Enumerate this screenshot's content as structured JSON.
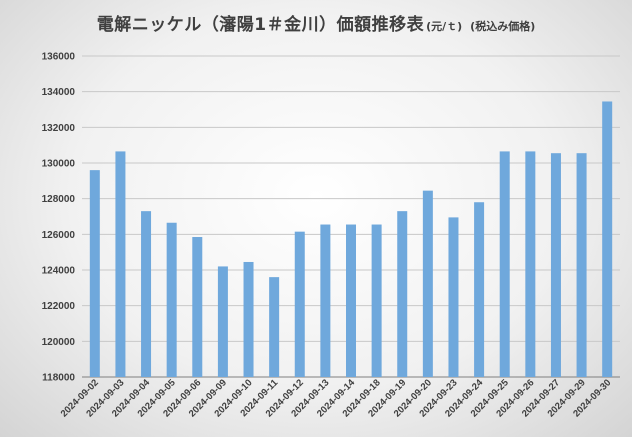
{
  "title": {
    "main": "電解ニッケル（瀋陽1＃金川）価額推移表",
    "unit": "(元/ｔ)",
    "note": "(税込み価格)"
  },
  "colors": {
    "bar": "#6fa8dc",
    "grid": "#c8c8c8",
    "axis": "#7f7f7f",
    "text": "#404040"
  },
  "chart_data": {
    "type": "bar",
    "title": "電解ニッケル（瀋陽1＃金川）価額推移表",
    "xlabel": "",
    "ylabel": "",
    "ylim": [
      118000,
      136000
    ],
    "yticks": [
      118000,
      120000,
      122000,
      124000,
      126000,
      128000,
      130000,
      132000,
      134000,
      136000
    ],
    "grid": true,
    "legend": "none",
    "categories": [
      "2024-09-02",
      "2024-09-03",
      "2024-09-04",
      "2024-09-05",
      "2024-09-06",
      "2024-09-09",
      "2024-09-10",
      "2024-09-11",
      "2024-09-12",
      "2024-09-13",
      "2024-09-14",
      "2024-09-18",
      "2024-09-19",
      "2024-09-20",
      "2024-09-23",
      "2024-09-24",
      "2024-09-25",
      "2024-09-26",
      "2024-09-27",
      "2024-09-29",
      "2024-09-30"
    ],
    "values": [
      129600,
      130650,
      127300,
      126650,
      125850,
      124200,
      124450,
      123600,
      126150,
      126550,
      126550,
      126550,
      127300,
      128450,
      126950,
      127800,
      130650,
      130650,
      130550,
      130550,
      133450
    ]
  }
}
